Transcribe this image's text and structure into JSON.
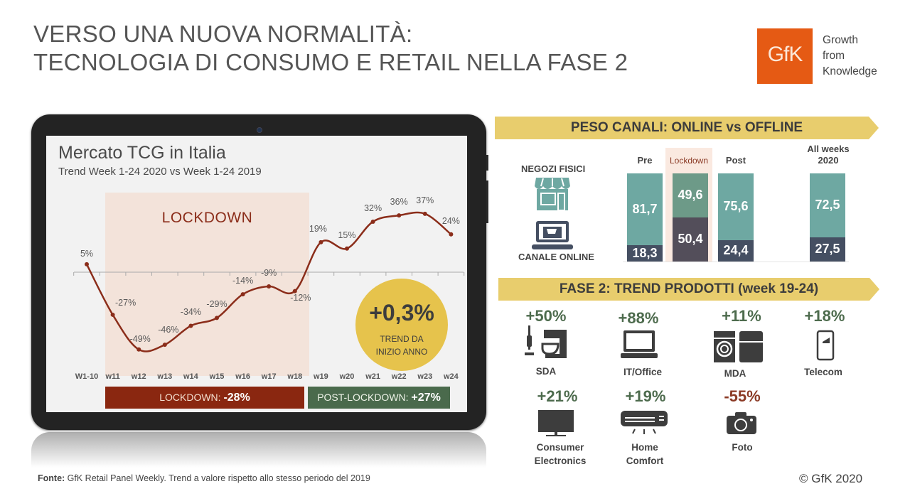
{
  "header": {
    "title_line1": "VERSO UNA NUOVA NORMALITÀ:",
    "title_line2": "TECNOLOGIA DI CONSUMO E RETAIL NELLA FASE 2",
    "logo_text": "GfK",
    "tagline": [
      "Growth",
      "from",
      "Knowledge"
    ],
    "brand_color": "#e55a14"
  },
  "chart_data": [
    {
      "type": "line",
      "title": "Mercato TCG in Italia",
      "subtitle": "Trend Week 1-24 2020 vs Week 1-24 2019",
      "categories": [
        "W1-10",
        "w11",
        "w12",
        "w13",
        "w14",
        "w15",
        "w16",
        "w17",
        "w18",
        "w19",
        "w20",
        "w21",
        "w22",
        "w23",
        "w24"
      ],
      "values": [
        5,
        -27,
        -49,
        -46,
        -34,
        -29,
        -14,
        -9,
        -12,
        19,
        15,
        32,
        36,
        37,
        24
      ],
      "value_labels": [
        "5%",
        "-27%",
        "-49%",
        "-46%",
        "-34%",
        "-29%",
        "-14%",
        "-9%",
        "-12%",
        "19%",
        "15%",
        "32%",
        "36%",
        "37%",
        "24%"
      ],
      "xlabel": "",
      "ylabel": "",
      "annotations": {
        "shaded_region": {
          "label": "LOCKDOWN",
          "from": "w11",
          "to": "w18",
          "color": "#f3e3da"
        },
        "circle_value": "+0,3%",
        "circle_text_line1": "TREND DA",
        "circle_text_line2": "INIZIO ANNO",
        "lockdown_bar_label": "LOCKDOWN: ",
        "lockdown_bar_value": "-28%",
        "post_bar_label": "POST-LOCKDOWN: ",
        "post_bar_value": "+27%"
      },
      "line_color": "#8b2d1a",
      "grid": false
    },
    {
      "type": "bar",
      "stacked": true,
      "title": "PESO CANALI: ONLINE vs OFFLINE",
      "categories": [
        "Pre",
        "Lockdown",
        "Post",
        "All weeks 2020"
      ],
      "series": [
        {
          "name": "NEGOZI FISICI",
          "values": [
            81.7,
            49.6,
            75.6,
            72.5
          ],
          "color": "#6ea8a2"
        },
        {
          "name": "CANALE ONLINE",
          "values": [
            18.3,
            50.4,
            24.4,
            27.5
          ],
          "color": "#454f62"
        }
      ],
      "ylim": [
        0,
        100
      ]
    }
  ],
  "channels": {
    "title": "PESO CANALI: ONLINE vs OFFLINE",
    "offline_label": "NEGOZI FISICI",
    "online_label": "CANALE ONLINE",
    "columns": [
      {
        "header": "Pre",
        "offline": "81,7",
        "online": "18,3"
      },
      {
        "header": "Lockdown",
        "offline": "49,6",
        "online": "50,4"
      },
      {
        "header": "Post",
        "offline": "75,6",
        "online": "24,4"
      },
      {
        "header_line1": "All weeks",
        "header_line2": "2020",
        "offline": "72,5",
        "online": "27,5"
      }
    ]
  },
  "products": {
    "title": "FASE 2: TREND PRODOTTI  (week 19-24)",
    "items": [
      {
        "value": "+50%",
        "name": "SDA",
        "icon": "vacuum-mixer-icon"
      },
      {
        "value": "+88%",
        "name": "IT/Office",
        "icon": "laptop-icon"
      },
      {
        "value": "+11%",
        "name": "MDA",
        "icon": "washer-fridge-icon"
      },
      {
        "value": "+18%",
        "name": "Telecom",
        "icon": "smartphone-icon"
      },
      {
        "value": "+21%",
        "name_line1": "Consumer",
        "name_line2": "Electronics",
        "icon": "tv-icon"
      },
      {
        "value": "+19%",
        "name_line1": "Home",
        "name_line2": "Comfort",
        "icon": "air-conditioner-icon"
      },
      {
        "value": "-55%",
        "name": "Foto",
        "icon": "camera-icon"
      }
    ],
    "positive_color": "#4d6b4d",
    "negative_color": "#8b3a25"
  },
  "footer": {
    "source_label": "Fonte:",
    "source_text": " GfK Retail Panel Weekly. Trend a valore rispetto allo stesso periodo del 2019",
    "copyright": "© GfK 2020"
  }
}
